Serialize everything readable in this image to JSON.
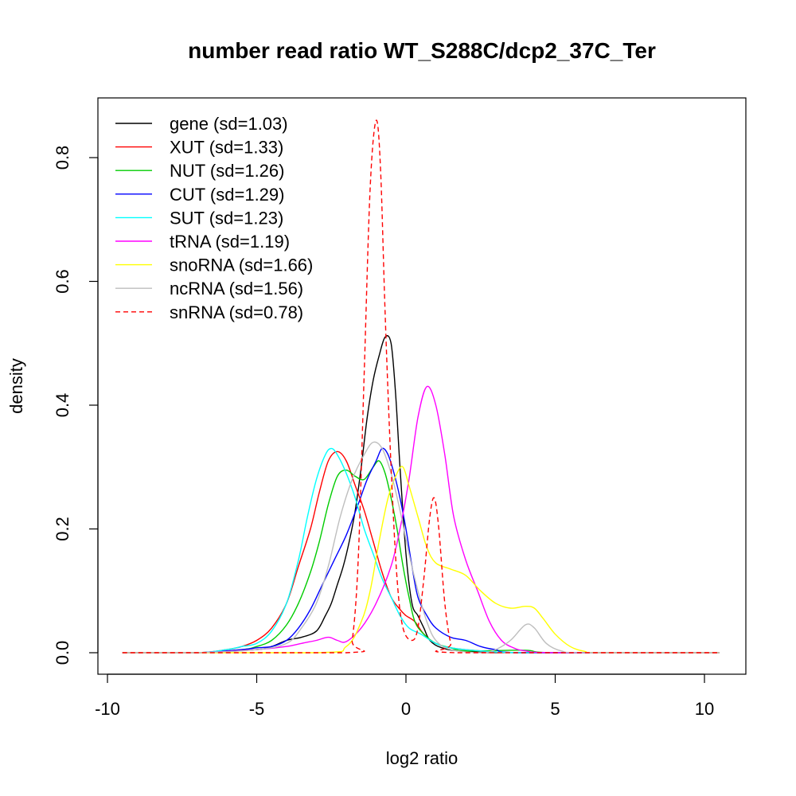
{
  "chart_data": {
    "type": "line",
    "title": "number read ratio WT_S288C/dcp2_37C_Ter",
    "xlabel": "log2 ratio",
    "ylabel": "density",
    "xlim": [
      -10,
      10
    ],
    "ylim": [
      0,
      0.8
    ],
    "xticks": [
      -10,
      -5,
      0,
      5,
      10
    ],
    "yticks": [
      0.0,
      0.2,
      0.4,
      0.6,
      0.8
    ],
    "grid": false,
    "legend_position": "top-left",
    "series": [
      {
        "name": "gene (sd=1.03)",
        "color": "#000000",
        "dash": false,
        "points": [
          [
            -9.5,
            0
          ],
          [
            -7,
            0
          ],
          [
            -5,
            0.005
          ],
          [
            -4.5,
            0.01
          ],
          [
            -4,
            0.02
          ],
          [
            -3.5,
            0.025
          ],
          [
            -3,
            0.035
          ],
          [
            -2.7,
            0.06
          ],
          [
            -2.5,
            0.08
          ],
          [
            -2.3,
            0.11
          ],
          [
            -2.1,
            0.14
          ],
          [
            -1.9,
            0.18
          ],
          [
            -1.7,
            0.23
          ],
          [
            -1.5,
            0.3
          ],
          [
            -1.3,
            0.38
          ],
          [
            -1.1,
            0.44
          ],
          [
            -0.9,
            0.48
          ],
          [
            -0.7,
            0.51
          ],
          [
            -0.5,
            0.5
          ],
          [
            -0.35,
            0.42
          ],
          [
            -0.2,
            0.3
          ],
          [
            0,
            0.16
          ],
          [
            0.2,
            0.08
          ],
          [
            0.4,
            0.06
          ],
          [
            0.6,
            0.04
          ],
          [
            0.8,
            0.02
          ],
          [
            1.2,
            0.008
          ],
          [
            2,
            0.002
          ],
          [
            4,
            0
          ],
          [
            10.5,
            0
          ]
        ]
      },
      {
        "name": "XUT (sd=1.33)",
        "color": "#ff0000",
        "dash": false,
        "points": [
          [
            -9.5,
            0
          ],
          [
            -7,
            0
          ],
          [
            -6,
            0.005
          ],
          [
            -5.5,
            0.01
          ],
          [
            -5,
            0.02
          ],
          [
            -4.5,
            0.04
          ],
          [
            -4,
            0.08
          ],
          [
            -3.6,
            0.14
          ],
          [
            -3.2,
            0.2
          ],
          [
            -2.9,
            0.26
          ],
          [
            -2.6,
            0.31
          ],
          [
            -2.3,
            0.325
          ],
          [
            -2.0,
            0.31
          ],
          [
            -1.7,
            0.27
          ],
          [
            -1.4,
            0.23
          ],
          [
            -1.1,
            0.18
          ],
          [
            -0.8,
            0.13
          ],
          [
            -0.5,
            0.09
          ],
          [
            -0.2,
            0.07
          ],
          [
            0,
            0.06
          ],
          [
            0.3,
            0.05
          ],
          [
            0.6,
            0.03
          ],
          [
            1,
            0.015
          ],
          [
            1.5,
            0.008
          ],
          [
            2.5,
            0.003
          ],
          [
            4,
            0
          ],
          [
            10.5,
            0
          ]
        ]
      },
      {
        "name": "NUT (sd=1.26)",
        "color": "#00cc00",
        "dash": false,
        "points": [
          [
            -9.5,
            0
          ],
          [
            -7,
            0
          ],
          [
            -5.5,
            0.005
          ],
          [
            -5,
            0.01
          ],
          [
            -4.5,
            0.02
          ],
          [
            -4,
            0.045
          ],
          [
            -3.6,
            0.08
          ],
          [
            -3.2,
            0.13
          ],
          [
            -2.9,
            0.18
          ],
          [
            -2.6,
            0.24
          ],
          [
            -2.3,
            0.285
          ],
          [
            -2.0,
            0.295
          ],
          [
            -1.7,
            0.285
          ],
          [
            -1.4,
            0.28
          ],
          [
            -1.1,
            0.3
          ],
          [
            -0.9,
            0.31
          ],
          [
            -0.7,
            0.29
          ],
          [
            -0.5,
            0.25
          ],
          [
            -0.3,
            0.2
          ],
          [
            -0.1,
            0.14
          ],
          [
            0.1,
            0.09
          ],
          [
            0.3,
            0.05
          ],
          [
            0.6,
            0.03
          ],
          [
            1,
            0.015
          ],
          [
            1.5,
            0.008
          ],
          [
            2,
            0.003
          ],
          [
            4,
            0.004
          ],
          [
            5,
            0
          ],
          [
            10.5,
            0
          ]
        ]
      },
      {
        "name": "CUT (sd=1.29)",
        "color": "#0000ff",
        "dash": false,
        "points": [
          [
            -9.5,
            0
          ],
          [
            -7,
            0
          ],
          [
            -5.5,
            0.005
          ],
          [
            -5,
            0.008
          ],
          [
            -4.5,
            0.01
          ],
          [
            -4,
            0.02
          ],
          [
            -3.6,
            0.04
          ],
          [
            -3.2,
            0.07
          ],
          [
            -2.8,
            0.11
          ],
          [
            -2.4,
            0.15
          ],
          [
            -2.0,
            0.19
          ],
          [
            -1.6,
            0.24
          ],
          [
            -1.3,
            0.28
          ],
          [
            -1.0,
            0.31
          ],
          [
            -0.8,
            0.33
          ],
          [
            -0.6,
            0.32
          ],
          [
            -0.4,
            0.29
          ],
          [
            -0.2,
            0.25
          ],
          [
            0,
            0.2
          ],
          [
            0.2,
            0.14
          ],
          [
            0.4,
            0.09
          ],
          [
            0.7,
            0.06
          ],
          [
            1,
            0.04
          ],
          [
            1.5,
            0.025
          ],
          [
            2,
            0.02
          ],
          [
            2.5,
            0.01
          ],
          [
            3,
            0.005
          ],
          [
            4,
            0
          ],
          [
            10.5,
            0
          ]
        ]
      },
      {
        "name": "SUT (sd=1.23)",
        "color": "#00ffff",
        "dash": false,
        "points": [
          [
            -9.5,
            0
          ],
          [
            -7,
            0
          ],
          [
            -6,
            0.005
          ],
          [
            -5.5,
            0.01
          ],
          [
            -5,
            0.015
          ],
          [
            -4.5,
            0.035
          ],
          [
            -4,
            0.08
          ],
          [
            -3.6,
            0.15
          ],
          [
            -3.3,
            0.22
          ],
          [
            -3.0,
            0.28
          ],
          [
            -2.7,
            0.32
          ],
          [
            -2.5,
            0.33
          ],
          [
            -2.3,
            0.32
          ],
          [
            -2.0,
            0.29
          ],
          [
            -1.7,
            0.25
          ],
          [
            -1.4,
            0.2
          ],
          [
            -1.1,
            0.16
          ],
          [
            -0.8,
            0.12
          ],
          [
            -0.5,
            0.09
          ],
          [
            -0.2,
            0.06
          ],
          [
            0.1,
            0.04
          ],
          [
            0.5,
            0.03
          ],
          [
            1,
            0.015
          ],
          [
            1.5,
            0.008
          ],
          [
            2.5,
            0.003
          ],
          [
            4,
            0
          ],
          [
            10.5,
            0
          ]
        ]
      },
      {
        "name": "tRNA (sd=1.19)",
        "color": "#ff00ff",
        "dash": false,
        "points": [
          [
            -9.5,
            0
          ],
          [
            -7,
            0
          ],
          [
            -5,
            0.005
          ],
          [
            -4,
            0.01
          ],
          [
            -3.5,
            0.015
          ],
          [
            -3,
            0.02
          ],
          [
            -2.6,
            0.025
          ],
          [
            -2.3,
            0.02
          ],
          [
            -2,
            0.018
          ],
          [
            -1.5,
            0.04
          ],
          [
            -1,
            0.08
          ],
          [
            -0.5,
            0.14
          ],
          [
            -0.2,
            0.2
          ],
          [
            0.1,
            0.28
          ],
          [
            0.4,
            0.38
          ],
          [
            0.7,
            0.43
          ],
          [
            1.0,
            0.4
          ],
          [
            1.3,
            0.32
          ],
          [
            1.6,
            0.22
          ],
          [
            2,
            0.15
          ],
          [
            2.4,
            0.1
          ],
          [
            2.8,
            0.05
          ],
          [
            3.2,
            0.02
          ],
          [
            3.6,
            0.008
          ],
          [
            4,
            0.003
          ],
          [
            5,
            0
          ],
          [
            10.5,
            0
          ]
        ]
      },
      {
        "name": "snoRNA (sd=1.66)",
        "color": "#ffff00",
        "dash": false,
        "points": [
          [
            -9.5,
            0
          ],
          [
            -3,
            0
          ],
          [
            -2,
            0.01
          ],
          [
            -1.5,
            0.05
          ],
          [
            -1.2,
            0.1
          ],
          [
            -0.9,
            0.18
          ],
          [
            -0.6,
            0.25
          ],
          [
            -0.3,
            0.29
          ],
          [
            -0.1,
            0.3
          ],
          [
            0.1,
            0.27
          ],
          [
            0.4,
            0.22
          ],
          [
            0.7,
            0.17
          ],
          [
            1,
            0.145
          ],
          [
            1.5,
            0.135
          ],
          [
            2,
            0.125
          ],
          [
            2.5,
            0.1
          ],
          [
            3,
            0.08
          ],
          [
            3.5,
            0.072
          ],
          [
            4,
            0.075
          ],
          [
            4.3,
            0.072
          ],
          [
            4.6,
            0.055
          ],
          [
            5,
            0.03
          ],
          [
            5.5,
            0.01
          ],
          [
            6,
            0.002
          ],
          [
            6.5,
            0
          ],
          [
            10.5,
            0
          ]
        ]
      },
      {
        "name": "ncRNA (sd=1.56)",
        "color": "#bebebe",
        "dash": false,
        "points": [
          [
            -9.5,
            0
          ],
          [
            -7,
            0
          ],
          [
            -5,
            0.005
          ],
          [
            -4,
            0.015
          ],
          [
            -3.5,
            0.04
          ],
          [
            -3,
            0.08
          ],
          [
            -2.6,
            0.14
          ],
          [
            -2.2,
            0.22
          ],
          [
            -1.8,
            0.28
          ],
          [
            -1.4,
            0.32
          ],
          [
            -1.1,
            0.34
          ],
          [
            -0.8,
            0.33
          ],
          [
            -0.5,
            0.29
          ],
          [
            -0.2,
            0.23
          ],
          [
            0.1,
            0.16
          ],
          [
            0.4,
            0.1
          ],
          [
            0.7,
            0.05
          ],
          [
            1.0,
            0.02
          ],
          [
            1.5,
            0.005
          ],
          [
            2.5,
            0
          ],
          [
            3,
            0.005
          ],
          [
            3.5,
            0.02
          ],
          [
            4,
            0.045
          ],
          [
            4.3,
            0.04
          ],
          [
            4.7,
            0.015
          ],
          [
            5.2,
            0.003
          ],
          [
            6,
            0
          ],
          [
            10.5,
            0
          ]
        ]
      },
      {
        "name": "snRNA (sd=0.78)",
        "color": "#ff0000",
        "dash": true,
        "points": [
          [
            -9.5,
            0
          ],
          [
            -2,
            0
          ],
          [
            -1.8,
            0.02
          ],
          [
            -1.6,
            0.15
          ],
          [
            -1.4,
            0.45
          ],
          [
            -1.2,
            0.75
          ],
          [
            -1.0,
            0.86
          ],
          [
            -0.85,
            0.78
          ],
          [
            -0.7,
            0.55
          ],
          [
            -0.5,
            0.3
          ],
          [
            -0.3,
            0.12
          ],
          [
            -0.1,
            0.04
          ],
          [
            0.2,
            0.02
          ],
          [
            0.4,
            0.04
          ],
          [
            0.6,
            0.12
          ],
          [
            0.8,
            0.22
          ],
          [
            0.95,
            0.25
          ],
          [
            1.1,
            0.2
          ],
          [
            1.3,
            0.08
          ],
          [
            1.5,
            0.015
          ],
          [
            1.7,
            0
          ],
          [
            10.5,
            0
          ]
        ]
      }
    ]
  }
}
